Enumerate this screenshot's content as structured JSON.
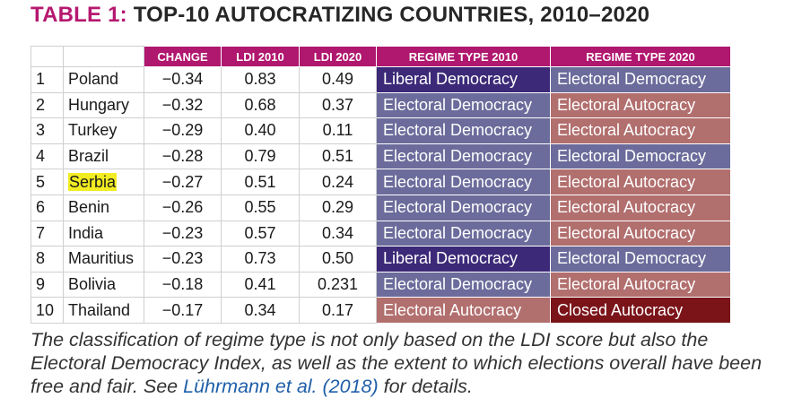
{
  "title": {
    "label": "TABLE 1:",
    "text": "TOP-10 AUTOCRATIZING COUNTRIES, 2010–2020"
  },
  "table": {
    "headers": [
      "CHANGE",
      "LDI 2010",
      "LDI 2020",
      "REGIME TYPE 2010",
      "REGIME TYPE 2020"
    ],
    "rows": [
      {
        "rank": "1",
        "country": "Poland",
        "change": "−0.34",
        "ldi2010": "0.83",
        "ldi2020": "0.49",
        "regime2010": "Liberal Democracy",
        "regime2020": "Electoral Democracy"
      },
      {
        "rank": "2",
        "country": "Hungary",
        "change": "−0.32",
        "ldi2010": "0.68",
        "ldi2020": "0.37",
        "regime2010": "Electoral Democracy",
        "regime2020": "Electoral Autocracy"
      },
      {
        "rank": "3",
        "country": "Turkey",
        "change": "−0.29",
        "ldi2010": "0.40",
        "ldi2020": "0.11",
        "regime2010": "Electoral Democracy",
        "regime2020": "Electoral Autocracy"
      },
      {
        "rank": "4",
        "country": "Brazil",
        "change": "−0.28",
        "ldi2010": "0.79",
        "ldi2020": "0.51",
        "regime2010": "Electoral Democracy",
        "regime2020": "Electoral Democracy"
      },
      {
        "rank": "5",
        "country": "Serbia",
        "change": "−0.27",
        "ldi2010": "0.51",
        "ldi2020": "0.24",
        "regime2010": "Electoral Democracy",
        "regime2020": "Electoral Autocracy"
      },
      {
        "rank": "6",
        "country": "Benin",
        "change": "−0.26",
        "ldi2010": "0.55",
        "ldi2020": "0.29",
        "regime2010": "Electoral Democracy",
        "regime2020": "Electoral Autocracy"
      },
      {
        "rank": "7",
        "country": "India",
        "change": "−0.23",
        "ldi2010": "0.57",
        "ldi2020": "0.34",
        "regime2010": "Electoral Democracy",
        "regime2020": "Electoral Autocracy"
      },
      {
        "rank": "8",
        "country": "Mauritius",
        "change": "−0.23",
        "ldi2010": "0.73",
        "ldi2020": "0.50",
        "regime2010": "Liberal Democracy",
        "regime2020": "Electoral Democracy"
      },
      {
        "rank": "9",
        "country": "Bolivia",
        "change": "−0.18",
        "ldi2010": "0.41",
        "ldi2020": "0.231",
        "regime2010": "Electoral Democracy",
        "regime2020": "Electoral Autocracy"
      },
      {
        "rank": "10",
        "country": "Thailand",
        "change": "−0.17",
        "ldi2010": "0.34",
        "ldi2020": "0.17",
        "regime2010": "Electoral Autocracy",
        "regime2020": "Closed Autocracy"
      }
    ],
    "highlighted_country": "Serbia"
  },
  "regime_colors": {
    "Liberal Democracy": "#3c2a78",
    "Electoral Democracy": "#6b6c9b",
    "Electoral Autocracy": "#b16f6e",
    "Closed Autocracy": "#7a1419"
  },
  "header_color": "#b0176f",
  "highlight_color": "#f2ec22",
  "caption": {
    "text_before": "The classification of regime type is not only based on the LDI score but also the Electoral Democracy Index, as well as the extent to which elections overall have been free and fair. See ",
    "link": "Lührmann et al. (2018)",
    "text_after": " for details."
  }
}
